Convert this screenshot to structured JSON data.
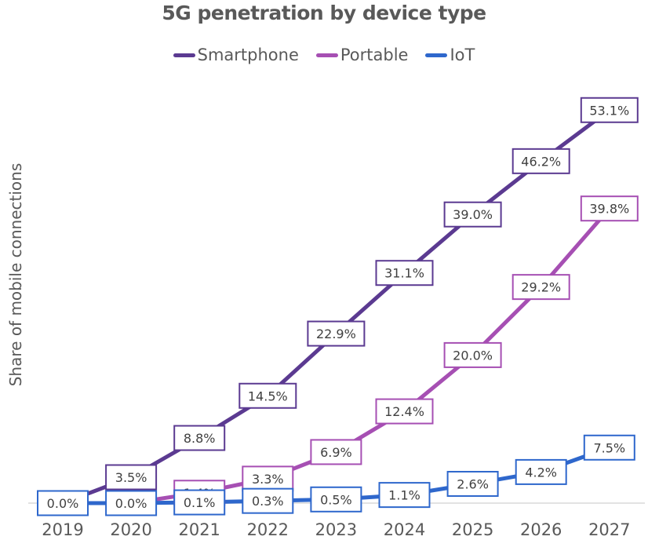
{
  "chart_data": {
    "type": "line",
    "title": "5G penetration by device type",
    "xlabel": "",
    "ylabel": "Share of mobile connections",
    "x": [
      "2019",
      "2020",
      "2021",
      "2022",
      "2023",
      "2024",
      "2025",
      "2026",
      "2027"
    ],
    "ylim": [
      0,
      55
    ],
    "grid": false,
    "legend": "top-center",
    "series": [
      {
        "name": "Smartphone",
        "color": "#5B3A91",
        "values": [
          0.0,
          3.5,
          8.8,
          14.5,
          22.9,
          31.1,
          39.0,
          46.2,
          53.1
        ],
        "labels": [
          "0.0%",
          "3.5%",
          "8.8%",
          "14.5%",
          "22.9%",
          "31.1%",
          "39.0%",
          "46.2%",
          "53.1%"
        ]
      },
      {
        "name": "Portable",
        "color": "#A64FB3",
        "values": [
          0.0,
          0.0,
          1.4,
          3.3,
          6.9,
          12.4,
          20.0,
          29.2,
          39.8
        ],
        "labels": [
          "",
          "",
          "1.4%",
          "3.3%",
          "6.9%",
          "12.4%",
          "20.0%",
          "29.2%",
          "39.8%"
        ]
      },
      {
        "name": "IoT",
        "color": "#2E67CC",
        "values": [
          0.0,
          0.0,
          0.1,
          0.3,
          0.5,
          1.1,
          2.6,
          4.2,
          7.5
        ],
        "labels": [
          "0.0%",
          "0.0%",
          "0.1%",
          "0.3%",
          "0.5%",
          "1.1%",
          "2.6%",
          "4.2%",
          "7.5%"
        ]
      }
    ]
  }
}
